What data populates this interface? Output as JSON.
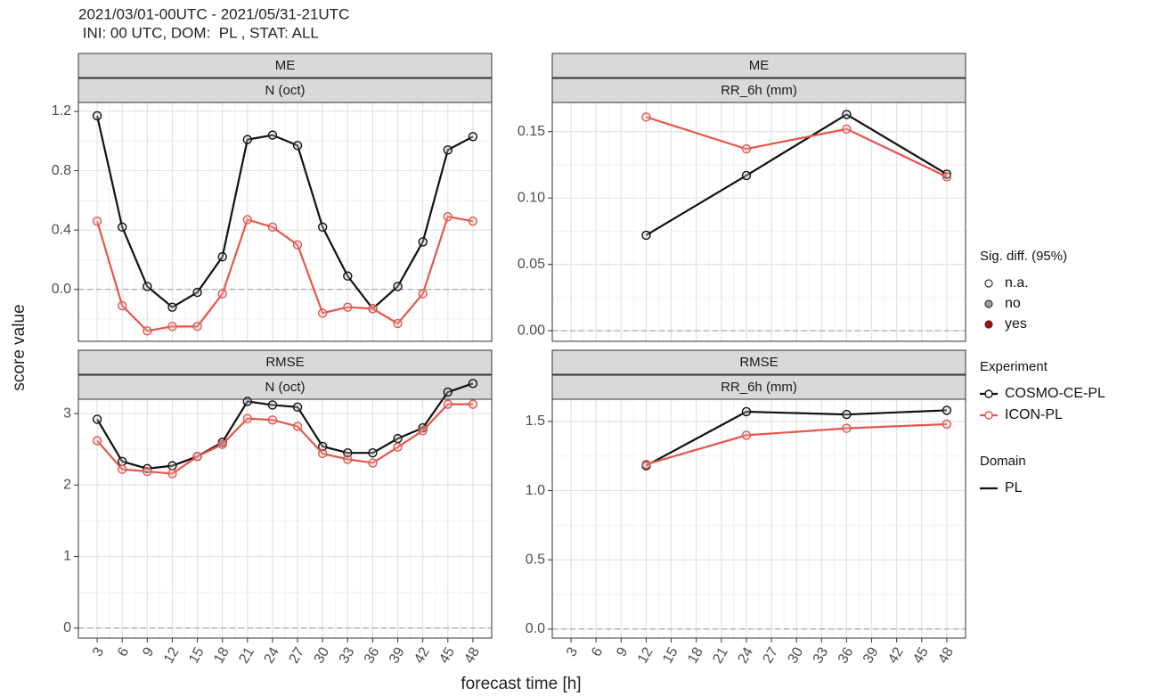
{
  "title": [
    "2021/03/01-00UTC - 2021/05/31-21UTC",
    " INI: 00 UTC, DOM:  PL , STAT: ALL"
  ],
  "xlabel": "forecast time [h]",
  "ylabel": "score value",
  "legend": {
    "sig_title": "Sig. diff. (95%)",
    "sig_items": [
      "n.a.",
      "no",
      "yes"
    ],
    "sig_colors": [
      "#ffffff",
      "#a0a0a0",
      "#c00000"
    ],
    "experiment_title": "Experiment",
    "domain_title": "Domain",
    "domain_items": [
      "PL"
    ]
  },
  "chart_data": [
    {
      "type": "line",
      "strips": [
        "ME",
        "N (oct)"
      ],
      "hline": 0,
      "x": [
        3,
        6,
        9,
        12,
        15,
        18,
        21,
        24,
        27,
        30,
        33,
        36,
        39,
        42,
        45,
        48
      ],
      "xlim": [
        0.75,
        50.25
      ],
      "xticks": [
        3,
        6,
        9,
        12,
        15,
        18,
        21,
        24,
        27,
        30,
        33,
        36,
        39,
        42,
        45,
        48
      ],
      "ylim": [
        -0.35,
        1.26
      ],
      "yticks": [
        {
          "value": 0,
          "label": "0.0"
        },
        0.4,
        0.8,
        1.2
      ],
      "series": [
        {
          "name": "COSMO-CE-PL",
          "color": "#111111",
          "values": [
            1.17,
            0.42,
            0.02,
            -0.12,
            -0.02,
            0.22,
            1.01,
            1.04,
            0.97,
            0.42,
            0.09,
            -0.13,
            0.02,
            0.32,
            0.94,
            1.03
          ]
        },
        {
          "name": "ICON-PL",
          "color": "#e8554a",
          "values": [
            0.46,
            -0.11,
            -0.28,
            -0.25,
            -0.25,
            -0.03,
            0.47,
            0.42,
            0.3,
            -0.16,
            -0.12,
            -0.13,
            -0.23,
            -0.03,
            0.49,
            0.46
          ]
        }
      ]
    },
    {
      "type": "line",
      "strips": [
        "ME",
        "RR_6h (mm)"
      ],
      "hline": 0,
      "x": [
        12,
        24,
        36,
        48
      ],
      "xlim": [
        0.75,
        50.25
      ],
      "xticks": [
        3,
        6,
        9,
        12,
        15,
        18,
        21,
        24,
        27,
        30,
        33,
        36,
        39,
        42,
        45,
        48
      ],
      "ylim": [
        -0.008,
        0.172
      ],
      "yticks": [
        {
          "value": 0,
          "label": "0.00"
        },
        {
          "value": 0.05,
          "label": "0.05"
        },
        {
          "value": 0.1,
          "label": "0.10"
        },
        {
          "value": 0.15,
          "label": "0.15"
        }
      ],
      "series": [
        {
          "color": "#111111",
          "values": [
            0.072,
            0.117,
            0.163,
            0.118
          ]
        },
        {
          "color": "#e8554a",
          "values": [
            0.161,
            0.137,
            0.152,
            0.116
          ]
        }
      ]
    },
    {
      "type": "line",
      "strips": [
        "RMSE",
        "N (oct)"
      ],
      "hline": 0,
      "x": [
        3,
        6,
        9,
        12,
        15,
        18,
        21,
        24,
        27,
        30,
        33,
        36,
        39,
        42,
        45,
        48
      ],
      "xlim": [
        0.75,
        50.25
      ],
      "xticks": [
        3,
        6,
        9,
        12,
        15,
        18,
        21,
        24,
        27,
        30,
        33,
        36,
        39,
        42,
        45,
        48
      ],
      "ylim": [
        -0.14,
        3.2
      ],
      "yticks": [
        0,
        1,
        2,
        3
      ],
      "series": [
        {
          "color": "#111111",
          "values": [
            2.92,
            2.33,
            2.23,
            2.27,
            2.4,
            2.6,
            3.17,
            3.12,
            3.09,
            2.54,
            2.45,
            2.45,
            2.65,
            2.8,
            3.3,
            3.42
          ]
        },
        {
          "color": "#e8554a",
          "values": [
            2.62,
            2.22,
            2.19,
            2.16,
            2.4,
            2.57,
            2.93,
            2.91,
            2.82,
            2.44,
            2.36,
            2.31,
            2.53,
            2.76,
            3.13,
            3.13
          ]
        }
      ]
    },
    {
      "type": "line",
      "strips": [
        "RMSE",
        "RR_6h (mm)"
      ],
      "hline": 0,
      "x": [
        12,
        24,
        36,
        48
      ],
      "xlim": [
        0.75,
        50.25
      ],
      "xticks": [
        3,
        6,
        9,
        12,
        15,
        18,
        21,
        24,
        27,
        30,
        33,
        36,
        39,
        42,
        45,
        48
      ],
      "ylim": [
        -0.065,
        1.66
      ],
      "yticks": [
        {
          "value": 0,
          "label": "0.0"
        },
        0.5,
        {
          "value": 1,
          "label": "1.0"
        },
        1.5
      ],
      "series": [
        {
          "color": "#111111",
          "values": [
            1.18,
            1.57,
            1.55,
            1.58
          ]
        },
        {
          "color": "#e8554a",
          "values": [
            1.19,
            1.4,
            1.45,
            1.48
          ]
        }
      ]
    }
  ]
}
